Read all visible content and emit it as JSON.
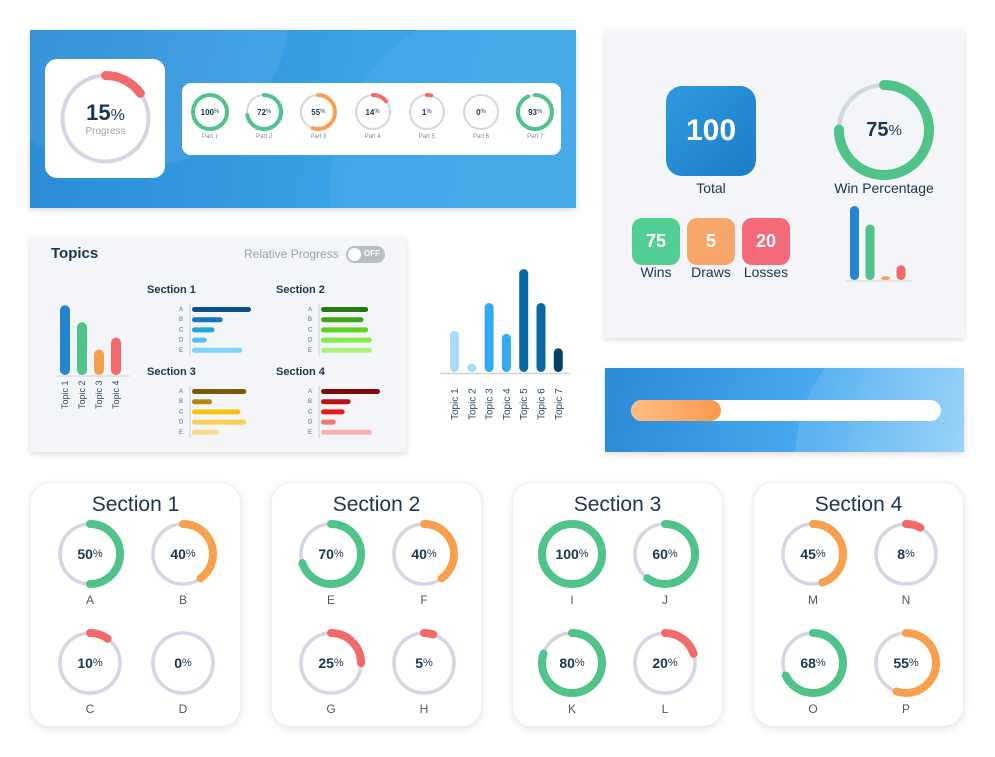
{
  "overall_progress": {
    "value": 15,
    "label": "Progress",
    "pct_sign": "%"
  },
  "parts": [
    {
      "label": "Part 1",
      "value": 100,
      "color": "#4fc38a"
    },
    {
      "label": "Part 2",
      "value": 72,
      "color": "#4fc38a"
    },
    {
      "label": "Part 3",
      "value": 55,
      "color": "#f9a04e"
    },
    {
      "label": "Part 4",
      "value": 14,
      "color": "#f26a6a"
    },
    {
      "label": "Part 5",
      "value": 1,
      "color": "#f26a6a"
    },
    {
      "label": "Part 6",
      "value": 0,
      "color": "#f26a6a"
    },
    {
      "label": "Part 7",
      "value": 93,
      "color": "#4fc38a"
    }
  ],
  "stats": {
    "total": {
      "value": "100",
      "label": "Total"
    },
    "win_percentage": {
      "value": 75,
      "label": "Win Percentage"
    },
    "wins": {
      "value": "75",
      "label": "Wins",
      "color": "#52cf95"
    },
    "draws": {
      "value": "5",
      "label": "Draws",
      "color": "#f9a66a"
    },
    "losses": {
      "value": "20",
      "label": "Losses",
      "color": "#f56a7a"
    },
    "mini_bars": [
      {
        "name": "total",
        "value": 100,
        "color": "#2685cf"
      },
      {
        "name": "wins",
        "value": 75,
        "color": "#4fc38a"
      },
      {
        "name": "draws",
        "value": 5,
        "color": "#f9a04e"
      },
      {
        "name": "losses",
        "value": 20,
        "color": "#f26a6a"
      }
    ]
  },
  "bar_progress": {
    "value": 0.29
  },
  "topics_panel": {
    "title": "Topics",
    "relative_progress_label": "Relative Progress",
    "toggle_label": "OFF",
    "chart_data": {
      "type": "bar",
      "categories": [
        "Topic 1",
        "Topic 2",
        "Topic 3",
        "Topic 4"
      ],
      "values": [
        82,
        62,
        30,
        44
      ],
      "colors": [
        "#2685cf",
        "#4fc38a",
        "#f9a04e",
        "#f26a6a"
      ],
      "ylim": [
        0,
        100
      ]
    },
    "sections": [
      {
        "title": "Section 1",
        "rows": [
          "A",
          "B",
          "C",
          "D",
          "E"
        ],
        "values": [
          100,
          52,
          38,
          25,
          85
        ],
        "colors": [
          "#0d4f8b",
          "#1b74bd",
          "#23a6df",
          "#4cc2f1",
          "#80d4f8"
        ]
      },
      {
        "title": "Section 2",
        "rows": [
          "A",
          "B",
          "C",
          "D",
          "E"
        ],
        "values": [
          80,
          72,
          80,
          86,
          86
        ],
        "colors": [
          "#237a12",
          "#3fa61c",
          "#5ed31f",
          "#86ea47",
          "#abf27d"
        ]
      },
      {
        "title": "Section 3",
        "rows": [
          "A",
          "B",
          "C",
          "D",
          "E"
        ],
        "values": [
          92,
          34,
          82,
          92,
          46
        ],
        "colors": [
          "#7a5a08",
          "#b48a0b",
          "#f2c40a",
          "#f7cf58",
          "#fadb8c"
        ]
      },
      {
        "title": "Section 4",
        "rows": [
          "A",
          "B",
          "C",
          "D",
          "E"
        ],
        "values": [
          100,
          50,
          40,
          25,
          86
        ],
        "colors": [
          "#7d0b0b",
          "#b81414",
          "#ec1b1b",
          "#f6786e",
          "#f9b0b0"
        ]
      }
    ]
  },
  "topics_chart": {
    "chart_data": {
      "type": "bar",
      "categories": [
        "Topic 1",
        "Topic 2",
        "Topic 3",
        "Topic 4",
        "Topic 5",
        "Topic 6",
        "Topic 7"
      ],
      "values": [
        40,
        8,
        67,
        37,
        100,
        67,
        23
      ],
      "colors": [
        "#a8ddf8",
        "#a8ddf8",
        "#33aaf0",
        "#33aaf0",
        "#0b68a6",
        "#0b68a6",
        "#064065"
      ],
      "ylim": [
        0,
        100
      ]
    }
  },
  "section_cards": [
    {
      "title": "Section 1",
      "items": [
        {
          "letter": "A",
          "value": 50,
          "color": "#4fc38a"
        },
        {
          "letter": "B",
          "value": 40,
          "color": "#f9a04e"
        },
        {
          "letter": "C",
          "value": 10,
          "color": "#f26a6a"
        },
        {
          "letter": "D",
          "value": 0,
          "color": "#f26a6a"
        }
      ]
    },
    {
      "title": "Section 2",
      "items": [
        {
          "letter": "E",
          "value": 70,
          "color": "#4fc38a"
        },
        {
          "letter": "F",
          "value": 40,
          "color": "#f9a04e"
        },
        {
          "letter": "G",
          "value": 25,
          "color": "#f26a6a"
        },
        {
          "letter": "H",
          "value": 5,
          "color": "#f26a6a"
        }
      ]
    },
    {
      "title": "Section 3",
      "items": [
        {
          "letter": "I",
          "value": 100,
          "color": "#4fc38a"
        },
        {
          "letter": "J",
          "value": 60,
          "color": "#4fc38a"
        },
        {
          "letter": "K",
          "value": 80,
          "color": "#4fc38a"
        },
        {
          "letter": "L",
          "value": 20,
          "color": "#f26a6a"
        }
      ]
    },
    {
      "title": "Section 4",
      "items": [
        {
          "letter": "M",
          "value": 45,
          "color": "#f9a04e"
        },
        {
          "letter": "N",
          "value": 8,
          "color": "#f26a6a"
        },
        {
          "letter": "O",
          "value": 68,
          "color": "#4fc38a"
        },
        {
          "letter": "P",
          "value": 55,
          "color": "#f9a04e"
        }
      ]
    }
  ],
  "colors": {
    "ring_track": "#d4d6e4",
    "text": "#1c3550"
  }
}
